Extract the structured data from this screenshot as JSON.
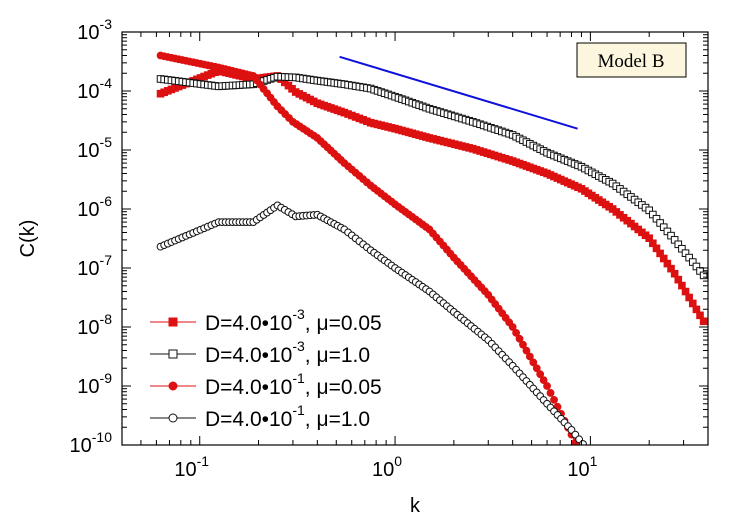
{
  "chart_data": {
    "type": "scatter",
    "title": "",
    "xlabel": "k",
    "ylabel": "C(k)",
    "xscale": "log",
    "yscale": "log",
    "xlim": [
      0.04,
      40
    ],
    "ylim": [
      1e-10,
      0.001
    ],
    "annotation": "Model B",
    "legend_position": "bottom-left",
    "x_ticks": [
      {
        "value": 0.1,
        "base": "10",
        "exp": "-1"
      },
      {
        "value": 1,
        "base": "10",
        "exp": "0"
      },
      {
        "value": 10,
        "base": "10",
        "exp": "1"
      }
    ],
    "y_ticks": [
      {
        "value": 1e-10,
        "base": "10",
        "exp": "-10"
      },
      {
        "value": 1e-09,
        "base": "10",
        "exp": "-9"
      },
      {
        "value": 1e-08,
        "base": "10",
        "exp": "-8"
      },
      {
        "value": 1e-07,
        "base": "10",
        "exp": "-7"
      },
      {
        "value": 1e-06,
        "base": "10",
        "exp": "-6"
      },
      {
        "value": 1e-05,
        "base": "10",
        "exp": "-5"
      },
      {
        "value": 0.0001,
        "base": "10",
        "exp": "-4"
      },
      {
        "value": 0.001,
        "base": "10",
        "exp": "-3"
      }
    ],
    "reference_line": {
      "color": "#1010dd",
      "x": [
        0.52,
        8.6
      ],
      "y": [
        0.00038,
        2.3e-05
      ]
    },
    "series": [
      {
        "name": "D=4.0•10-3, μ=0.05",
        "legend": {
          "pre": "D=4.0•10",
          "sup": "-3",
          "post": ", μ=0.05"
        },
        "color": "#dd1111",
        "marker": "square",
        "filled": true,
        "anchors": [
          [
            0.063,
            9e-05
          ],
          [
            0.125,
            0.00022
          ],
          [
            0.188,
            0.00016
          ],
          [
            0.25,
            0.00018
          ],
          [
            0.31,
            9.6e-05
          ],
          [
            0.4,
            6.2e-05
          ],
          [
            0.55,
            4.3e-05
          ],
          [
            0.75,
            2.9e-05
          ],
          [
            1.0,
            2.3e-05
          ],
          [
            1.5,
            1.6e-05
          ],
          [
            2.5,
            1.05e-05
          ],
          [
            4.0,
            6.5e-06
          ],
          [
            6.0,
            4e-06
          ],
          [
            9.0,
            2.2e-06
          ],
          [
            13.0,
            1e-06
          ],
          [
            20.0,
            3.2e-07
          ],
          [
            27.0,
            8e-08
          ],
          [
            38.0,
            1.25e-08
          ]
        ]
      },
      {
        "name": "D=4.0•10-3, μ=1.0",
        "legend": {
          "pre": "D=4.0•10",
          "sup": "-3",
          "post": ", μ=1.0"
        },
        "color": "#111111",
        "marker": "square",
        "filled": false,
        "anchors": [
          [
            0.063,
            0.00016
          ],
          [
            0.125,
            0.00012
          ],
          [
            0.188,
            0.00013
          ],
          [
            0.25,
            0.000175
          ],
          [
            0.31,
            0.00017
          ],
          [
            0.4,
            0.00015
          ],
          [
            0.55,
            0.00013
          ],
          [
            0.75,
            0.00011
          ],
          [
            1.0,
            8e-05
          ],
          [
            1.5,
            5e-05
          ],
          [
            2.5,
            3e-05
          ],
          [
            4.0,
            1.8e-05
          ],
          [
            6.0,
            9e-06
          ],
          [
            9.0,
            5.2e-06
          ],
          [
            13.0,
            2.7e-06
          ],
          [
            20.0,
            9.5e-07
          ],
          [
            27.0,
            3e-07
          ],
          [
            38.0,
            7.5e-08
          ]
        ]
      },
      {
        "name": "D=4.0•10-1, μ=0.05",
        "legend": {
          "pre": "D=4.0•10",
          "sup": "-1",
          "post": ", μ=0.05"
        },
        "color": "#dd1111",
        "marker": "circle",
        "filled": true,
        "anchors": [
          [
            0.063,
            0.0004
          ],
          [
            0.125,
            0.00025
          ],
          [
            0.188,
            0.00018
          ],
          [
            0.25,
            5.5e-05
          ],
          [
            0.3,
            3e-05
          ],
          [
            0.4,
            1.6e-05
          ],
          [
            0.55,
            6e-06
          ],
          [
            0.75,
            2.5e-06
          ],
          [
            1.0,
            1.2e-06
          ],
          [
            1.5,
            4.5e-07
          ],
          [
            2.0,
            1.5e-07
          ],
          [
            3.0,
            3.5e-08
          ],
          [
            4.0,
            1e-08
          ],
          [
            6.0,
            1e-09
          ],
          [
            8.0,
            1.5e-10
          ],
          [
            9.2,
            6e-11
          ]
        ]
      },
      {
        "name": "D=4.0•10-1, μ=1.0",
        "legend": {
          "pre": "D=4.0•10",
          "sup": "-1",
          "post": ", μ=1.0"
        },
        "color": "#111111",
        "marker": "circle",
        "filled": false,
        "anchors": [
          [
            0.063,
            2.3e-07
          ],
          [
            0.125,
            6e-07
          ],
          [
            0.188,
            6e-07
          ],
          [
            0.25,
            1.15e-06
          ],
          [
            0.31,
            7.5e-07
          ],
          [
            0.4,
            8e-07
          ],
          [
            0.55,
            4.5e-07
          ],
          [
            0.75,
            2e-07
          ],
          [
            1.0,
            1e-07
          ],
          [
            1.5,
            4e-08
          ],
          [
            2.0,
            1.8e-08
          ],
          [
            3.0,
            6e-09
          ],
          [
            4.0,
            2.2e-09
          ],
          [
            6.0,
            5e-10
          ],
          [
            8.0,
            1.8e-10
          ],
          [
            10.5,
            6e-11
          ]
        ]
      }
    ]
  }
}
